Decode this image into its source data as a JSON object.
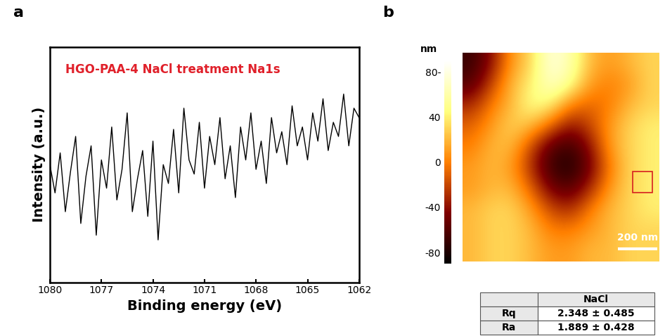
{
  "panel_labels": [
    "a",
    "b"
  ],
  "chart_data": [
    {
      "type": "line",
      "annotation": "HGO-PAA-4 NaCl treatment Na1s",
      "x_label": "Binding energy (eV)",
      "y_label": "Intensity (a.u.)",
      "x": [
        1080,
        1079.7,
        1079.4,
        1079.1,
        1078.8,
        1078.5,
        1078.2,
        1077.9,
        1077.6,
        1077.3,
        1077,
        1076.7,
        1076.4,
        1076.1,
        1075.8,
        1075.5,
        1075.2,
        1074.9,
        1074.6,
        1074.3,
        1074,
        1073.7,
        1073.4,
        1073.1,
        1072.8,
        1072.5,
        1072.2,
        1071.9,
        1071.6,
        1071.3,
        1071,
        1070.7,
        1070.4,
        1070.1,
        1069.8,
        1069.5,
        1069.2,
        1068.9,
        1068.6,
        1068.3,
        1068,
        1067.7,
        1067.4,
        1067.1,
        1066.8,
        1066.5,
        1066.2,
        1065.9,
        1065.6,
        1065.3,
        1065,
        1064.7,
        1064.4,
        1064.1,
        1063.8,
        1063.5,
        1063.2,
        1062.9,
        1062.6,
        1062.3,
        1062
      ],
      "values": [
        0.5,
        0.38,
        0.55,
        0.3,
        0.47,
        0.62,
        0.25,
        0.45,
        0.58,
        0.2,
        0.52,
        0.4,
        0.66,
        0.35,
        0.48,
        0.72,
        0.3,
        0.44,
        0.56,
        0.28,
        0.6,
        0.18,
        0.5,
        0.42,
        0.65,
        0.38,
        0.74,
        0.52,
        0.46,
        0.68,
        0.4,
        0.62,
        0.5,
        0.7,
        0.44,
        0.58,
        0.36,
        0.66,
        0.52,
        0.72,
        0.48,
        0.6,
        0.42,
        0.7,
        0.55,
        0.64,
        0.5,
        0.75,
        0.58,
        0.66,
        0.52,
        0.72,
        0.6,
        0.78,
        0.56,
        0.68,
        0.62,
        0.8,
        0.58,
        0.74,
        0.7
      ],
      "color": "#000000",
      "xlim": [
        1080,
        1062
      ],
      "xticks": [
        1080,
        1077,
        1074,
        1071,
        1068,
        1065,
        1062
      ],
      "ylim": [
        0,
        1
      ],
      "tick_labels": "x"
    },
    {
      "type": "heatmap",
      "cells": [
        [
          -70,
          -40,
          10,
          30,
          80,
          60,
          20,
          10,
          20,
          30
        ],
        [
          -60,
          -20,
          20,
          40,
          70,
          50,
          10,
          0,
          10,
          30
        ],
        [
          -30,
          0,
          20,
          50,
          40,
          0,
          -10,
          0,
          20,
          30
        ],
        [
          -10,
          10,
          30,
          20,
          -10,
          -40,
          -20,
          10,
          30,
          40
        ],
        [
          0,
          20,
          20,
          -20,
          -60,
          -70,
          -40,
          10,
          30,
          40
        ],
        [
          10,
          20,
          10,
          -30,
          -70,
          -80,
          -50,
          0,
          30,
          40
        ],
        [
          10,
          20,
          20,
          -10,
          -50,
          -60,
          -30,
          10,
          30,
          40
        ],
        [
          20,
          30,
          30,
          10,
          -20,
          -30,
          0,
          20,
          30,
          40
        ],
        [
          20,
          30,
          30,
          20,
          0,
          0,
          10,
          20,
          30,
          30
        ],
        [
          20,
          30,
          30,
          20,
          10,
          10,
          20,
          20,
          30,
          30
        ]
      ],
      "colorbar_range": [
        -90,
        90
      ],
      "colorbar_ticks": [
        {
          "value": 80,
          "label": "80-"
        },
        40,
        0,
        -40,
        -80
      ],
      "colorbar_label": "nm",
      "scale_bar_label": "200 nm",
      "tick_labels": false
    }
  ],
  "table": {
    "columns": [
      "NaCl"
    ],
    "rows": [
      [
        "Rq",
        "2.348 ± 0.485"
      ],
      [
        "Ra",
        "1.889 ± 0.428"
      ]
    ]
  }
}
